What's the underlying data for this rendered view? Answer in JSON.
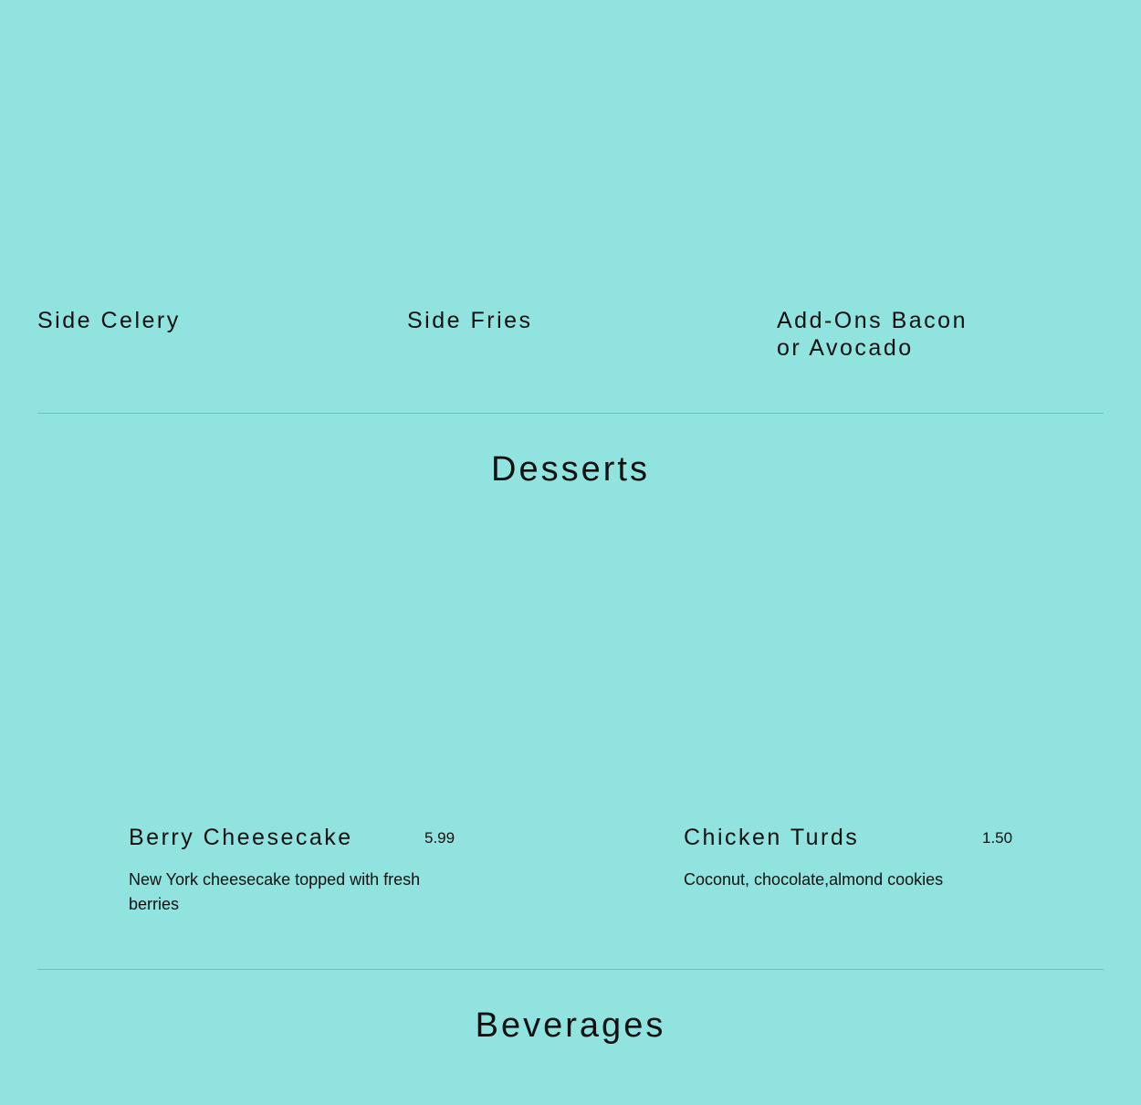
{
  "sides": [
    {
      "name": "Side Celery"
    },
    {
      "name": "Side Fries"
    },
    {
      "name": "Add-Ons Bacon or Avocado"
    }
  ],
  "desserts": {
    "title": "Desserts",
    "items": [
      {
        "name": "Berry Cheesecake",
        "price": "5.99",
        "description": "New York cheesecake topped with fresh berries"
      },
      {
        "name": "Chicken Turds",
        "price": "1.50",
        "description": "Coconut, chocolate,almond cookies"
      }
    ]
  },
  "beverages": {
    "title": "Beverages"
  },
  "colors": {
    "background": "#90e3de",
    "divider": "#6fc3bd"
  }
}
